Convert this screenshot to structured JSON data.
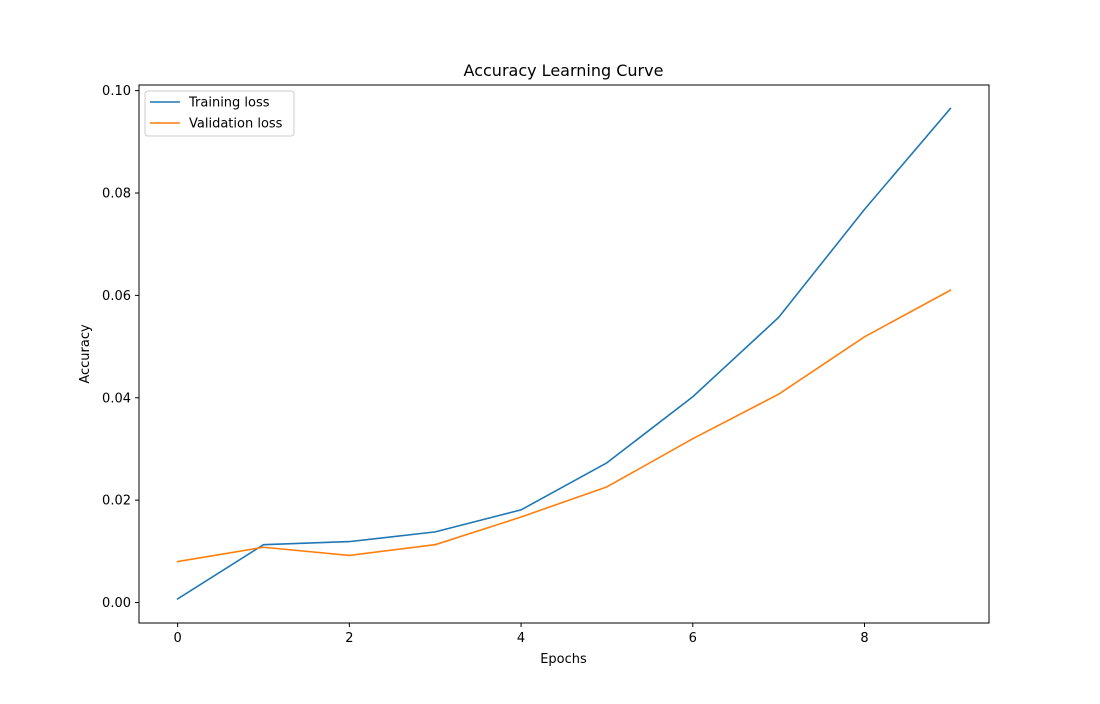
{
  "chart_data": {
    "type": "line",
    "title": "Accuracy Learning Curve",
    "xlabel": "Epochs",
    "ylabel": "Accuracy",
    "x": [
      0,
      1,
      2,
      3,
      4,
      5,
      6,
      7,
      8,
      9
    ],
    "xlim": [
      -0.45,
      9.45
    ],
    "ylim": [
      -0.004,
      0.1011
    ],
    "xticks": [
      0,
      2,
      4,
      6,
      8
    ],
    "xtick_labels": [
      "0",
      "2",
      "4",
      "6",
      "8"
    ],
    "yticks": [
      0.0,
      0.02,
      0.04,
      0.06,
      0.08,
      0.1
    ],
    "ytick_labels": [
      "0.00",
      "0.02",
      "0.04",
      "0.06",
      "0.08",
      "0.10"
    ],
    "grid": false,
    "legend_position": "top-left",
    "series": [
      {
        "name": "Training loss",
        "color": "#1f77b4",
        "values": [
          0.0007,
          0.0113,
          0.0119,
          0.0138,
          0.0181,
          0.0273,
          0.0402,
          0.0557,
          0.0768,
          0.0965
        ]
      },
      {
        "name": "Validation loss",
        "color": "#ff7f0e",
        "values": [
          0.008,
          0.0108,
          0.0092,
          0.0113,
          0.0167,
          0.0226,
          0.032,
          0.0407,
          0.0519,
          0.061
        ]
      }
    ]
  }
}
